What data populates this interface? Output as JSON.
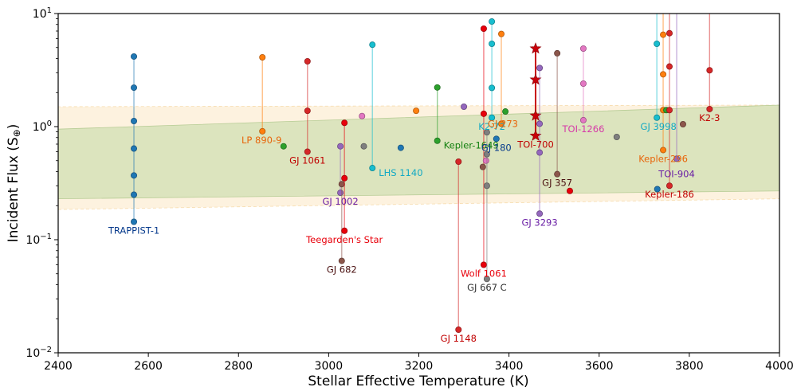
{
  "chart_data": {
    "type": "scatter",
    "title": "",
    "xlabel": "Stellar Effective Temperature (K)",
    "ylabel": "Incident Flux (S⊕)",
    "xlim": [
      2400,
      4000
    ],
    "ylim": [
      0.01,
      10
    ],
    "yscale": "log",
    "xticks": [
      2400,
      2600,
      2800,
      3000,
      3200,
      3400,
      3600,
      3800,
      4000
    ],
    "yticks": [
      {
        "value": 0.01,
        "label": "10^-2"
      },
      {
        "value": 0.1,
        "label": "10^-1"
      },
      {
        "value": 1,
        "label": "10^0"
      },
      {
        "value": 10,
        "label": "10^1"
      }
    ],
    "grid": false,
    "habitable_zone": {
      "conservative": {
        "color": "#d6e2b8",
        "at_2400": [
          0.23,
          0.95
        ],
        "at_4000": [
          0.27,
          1.55
        ]
      },
      "optimistic": {
        "color": "#fdf0d9",
        "at_2400": [
          0.185,
          1.5
        ],
        "at_4000": [
          0.23,
          1.55
        ]
      }
    },
    "systems": [
      {
        "name": "TRAPPIST-1",
        "label": "TRAPPIST-1",
        "color": "#1f77b4",
        "labelColor": "#063a8c",
        "teff": 2568,
        "flux": [
          4.17,
          2.21,
          1.12,
          0.64,
          0.37,
          0.25,
          0.144
        ],
        "labelPos": "below"
      },
      {
        "name": "LP 890-9",
        "label": "LP 890-9",
        "color": "#ff7f0e",
        "labelColor": "#e8650a",
        "teff": 2853,
        "flux": [
          4.1,
          0.91
        ],
        "labelPos": "below"
      },
      {
        "name": "GJ 1061",
        "label": "GJ 1061",
        "color": "#d62728",
        "labelColor": "#c00000",
        "teff": 2953,
        "flux": [
          3.78,
          1.38,
          0.6
        ],
        "labelPos": "below"
      },
      {
        "name": "unlabeled-green-2900",
        "label": "",
        "color": "#2ca02c",
        "teff": 2900,
        "flux": [
          0.67
        ]
      },
      {
        "name": "GJ 1002",
        "label": "GJ 1002",
        "color": "#9467bd",
        "labelColor": "#6a1fa5",
        "teff": 3026,
        "flux": [
          0.67,
          0.26
        ],
        "labelPos": "below"
      },
      {
        "name": "GJ 682",
        "label": "GJ 682",
        "color": "#8c564b",
        "labelColor": "#4a1010",
        "teff": 3029,
        "flux": [
          0.31,
          0.065
        ],
        "labelPos": "below"
      },
      {
        "name": "Teegarden's Star",
        "label": "Teegarden's Star",
        "color": "#e8000b",
        "labelColor": "#e8000b",
        "teff": 3035,
        "flux": [
          1.08,
          0.35,
          0.12
        ],
        "labelPos": "below"
      },
      {
        "name": "unlabeled-pink-3074",
        "label": "",
        "color": "#e377c2",
        "teff": 3074,
        "flux": [
          1.24
        ]
      },
      {
        "name": "unlabeled-grey-3078",
        "label": "",
        "color": "#7f7f7f",
        "teff": 3078,
        "flux": [
          0.67
        ]
      },
      {
        "name": "LHS 1140",
        "label": "LHS 1140",
        "color": "#17becf",
        "labelColor": "#12a9c4",
        "teff": 3097,
        "flux": [
          5.3,
          0.43
        ],
        "labelPos": "right"
      },
      {
        "name": "unlabeled-blue-3160",
        "label": "",
        "color": "#1f77b4",
        "teff": 3160,
        "flux": [
          0.65
        ]
      },
      {
        "name": "unlabeled-orange-3194",
        "label": "",
        "color": "#ff7f0e",
        "teff": 3194,
        "flux": [
          1.38
        ]
      },
      {
        "name": "Kepler-1649",
        "label": "Kepler-1649",
        "color": "#2ca02c",
        "labelColor": "#13800f",
        "teff": 3241,
        "flux": [
          2.22,
          0.75
        ],
        "labelPos": "right"
      },
      {
        "name": "GJ 1148",
        "label": "GJ 1148",
        "color": "#d62728",
        "labelColor": "#c00000",
        "teff": 3288,
        "flux": [
          0.49,
          0.016
        ],
        "labelPos": "below"
      },
      {
        "name": "unlabeled-purple-3300",
        "label": "",
        "color": "#9467bd",
        "teff": 3300,
        "flux": [
          1.5
        ]
      },
      {
        "name": "Wolf 1061",
        "label": "Wolf 1061",
        "color": "#e8000b",
        "labelColor": "#e8000b",
        "teff": 3344,
        "flux": [
          7.35,
          1.3,
          0.06
        ],
        "labelPos": "below"
      },
      {
        "name": "unlabeled-brown-3342",
        "label": "",
        "color": "#8c564b",
        "teff": 3342,
        "flux": [
          0.44
        ]
      },
      {
        "name": "unlabeled-pink-3349",
        "label": "",
        "color": "#e377c2",
        "teff": 3349,
        "flux": [
          0.5
        ]
      },
      {
        "name": "GJ 667 C",
        "label": "GJ 667 C",
        "color": "#7f7f7f",
        "labelColor": "#333333",
        "teff": 3351,
        "flux": [
          0.89,
          0.57,
          0.3,
          0.045
        ],
        "labelPos": "below"
      },
      {
        "name": "K2-72",
        "label": "K2-72",
        "color": "#17becf",
        "labelColor": "#12a9c4",
        "teff": 3362,
        "flux": [
          8.5,
          5.4,
          2.2,
          1.2
        ],
        "labelPos": "below"
      },
      {
        "name": "GJ 180",
        "label": "GJ 180",
        "color": "#1f77b4",
        "labelColor": "#063a8c",
        "teff": 3372,
        "flux": [
          0.78
        ],
        "labelPos": "below"
      },
      {
        "name": "GJ 273",
        "label": "GJ 273",
        "color": "#ff7f0e",
        "labelColor": "#e8650a",
        "teff": 3383,
        "flux": [
          6.6,
          1.06
        ],
        "labelPos": "below"
      },
      {
        "name": "unlabeled-green-3392",
        "label": "",
        "color": "#2ca02c",
        "teff": 3392,
        "flux": [
          1.36
        ]
      },
      {
        "name": "TOI-700",
        "label": "TOI-700",
        "color": "#c8000a",
        "labelColor": "#c00000",
        "teff": 3459,
        "flux": [
          4.9,
          2.6,
          1.25,
          0.83
        ],
        "marker": "star",
        "labelPos": "below"
      },
      {
        "name": "GJ 3293",
        "label": "GJ 3293",
        "color": "#9467bd",
        "labelColor": "#6a1fa5",
        "teff": 3468,
        "flux": [
          3.3,
          1.06,
          0.59,
          0.17
        ],
        "labelPos": "below"
      },
      {
        "name": "GJ 357",
        "label": "GJ 357",
        "color": "#8c564b",
        "labelColor": "#4a1010",
        "teff": 3507,
        "flux": [
          4.45,
          0.38
        ],
        "labelPos": "below"
      },
      {
        "name": "unlabeled-red-3535",
        "label": "",
        "color": "#e8000b",
        "teff": 3535,
        "flux": [
          0.27
        ]
      },
      {
        "name": "TOI-1266",
        "label": "TOI-1266",
        "color": "#e377c2",
        "labelColor": "#d63aa8",
        "teff": 3565,
        "flux": [
          4.9,
          2.4,
          1.14
        ],
        "labelPos": "below"
      },
      {
        "name": "unlabeled-grey-3639",
        "label": "",
        "color": "#7f7f7f",
        "teff": 3639,
        "flux": [
          0.81
        ]
      },
      {
        "name": "GJ 3998",
        "label": "GJ 3998",
        "color": "#17becf",
        "labelColor": "#12a9c4",
        "teff": 3728,
        "flux": [
          12,
          5.4,
          1.2
        ],
        "labelPos": "below"
      },
      {
        "name": "Kepler-296",
        "label": "Kepler-296",
        "color": "#ff7f0e",
        "labelColor": "#e8650a",
        "teff": 3742,
        "flux": [
          12,
          6.5,
          2.9,
          1.4,
          0.62
        ],
        "labelPos": "below"
      },
      {
        "name": "unlabeled-green-3749",
        "label": "",
        "color": "#2ca02c",
        "teff": 3749,
        "flux": [
          1.4
        ]
      },
      {
        "name": "unlabeled-blue-3729",
        "label": "",
        "color": "#1f77b4",
        "teff": 3729,
        "flux": [
          0.28
        ]
      },
      {
        "name": "Kepler-186",
        "label": "Kepler-186",
        "color": "#d62728",
        "labelColor": "#c00000",
        "teff": 3756,
        "flux": [
          12,
          6.7,
          3.4,
          1.4,
          0.3
        ],
        "labelPos": "below"
      },
      {
        "name": "TOI-904",
        "label": "TOI-904",
        "color": "#9467bd",
        "labelColor": "#6a1fa5",
        "teff": 3772,
        "flux": [
          12,
          0.52
        ],
        "labelPos": "below"
      },
      {
        "name": "unlabeled-brown-3786",
        "label": "",
        "color": "#8c564b",
        "teff": 3786,
        "flux": [
          1.05
        ]
      },
      {
        "name": "K2-3",
        "label": "K2-3",
        "color": "#d62728",
        "labelColor": "#c00000",
        "teff": 3845,
        "flux": [
          12,
          3.15,
          1.43
        ],
        "labelPos": "below"
      }
    ]
  }
}
